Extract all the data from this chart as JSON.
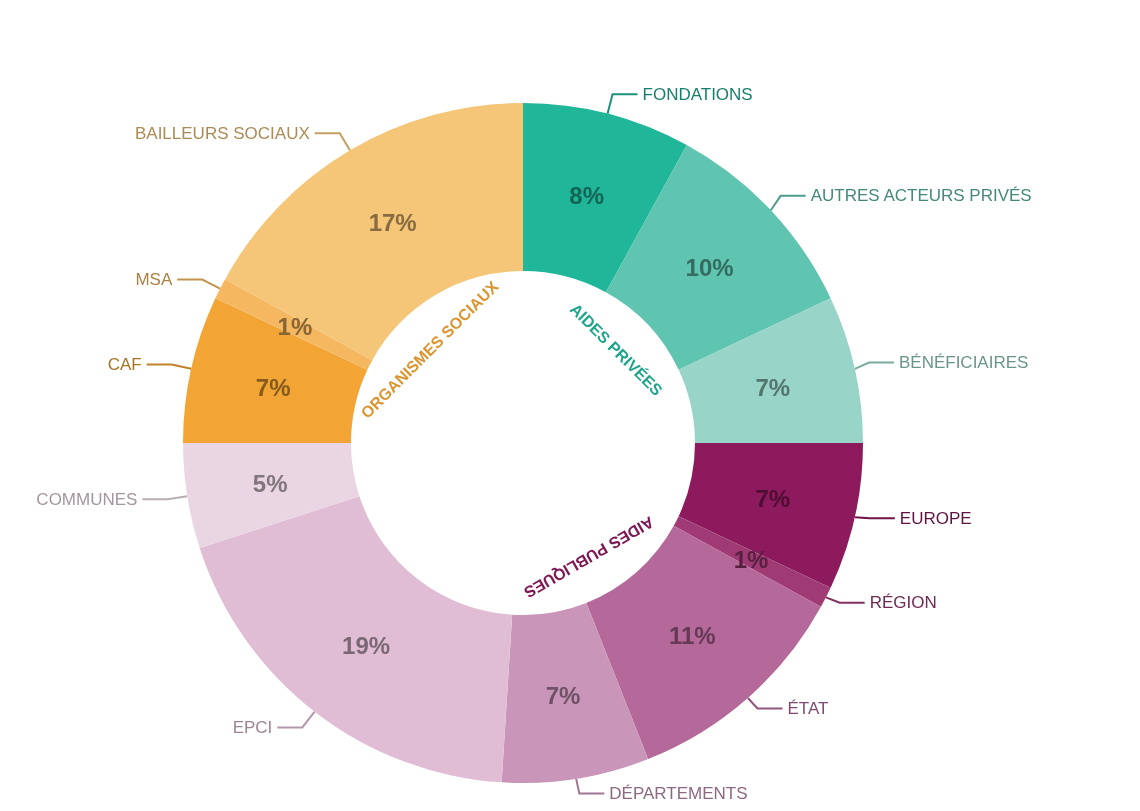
{
  "chart_data": {
    "type": "donut",
    "categories": [
      "FONDATIONS",
      "AUTRES ACTEURS PRIVÉS",
      "BÉNÉFICIAIRES",
      "EUROPE",
      "RÉGION",
      "ÉTAT",
      "DÉPARTEMENTS",
      "EPCI",
      "COMMUNES",
      "CAF",
      "MSA",
      "BAILLEURS SOCIAUX"
    ],
    "values": [
      8,
      10,
      7,
      7,
      1,
      11,
      7,
      19,
      5,
      7,
      1,
      17
    ],
    "colors": [
      "#20b69a",
      "#5fc4b0",
      "#98d5c8",
      "#8c1a5c",
      "#a03a75",
      "#b5699b",
      "#c995b8",
      "#e0bdd5",
      "#ead6e2",
      "#f2a535",
      "#f5b860",
      "#f5c578"
    ],
    "value_labels": [
      "8%",
      "10%",
      "7%",
      "7%",
      "1%",
      "11%",
      "7%",
      "19%",
      "5%",
      "7%",
      "1%",
      "17%"
    ],
    "legend": false,
    "annotations": [
      "AIDES PRIVÉES",
      "AIDES PUBLIQUES",
      "ORGANISMES SOCIAUX"
    ]
  }
}
